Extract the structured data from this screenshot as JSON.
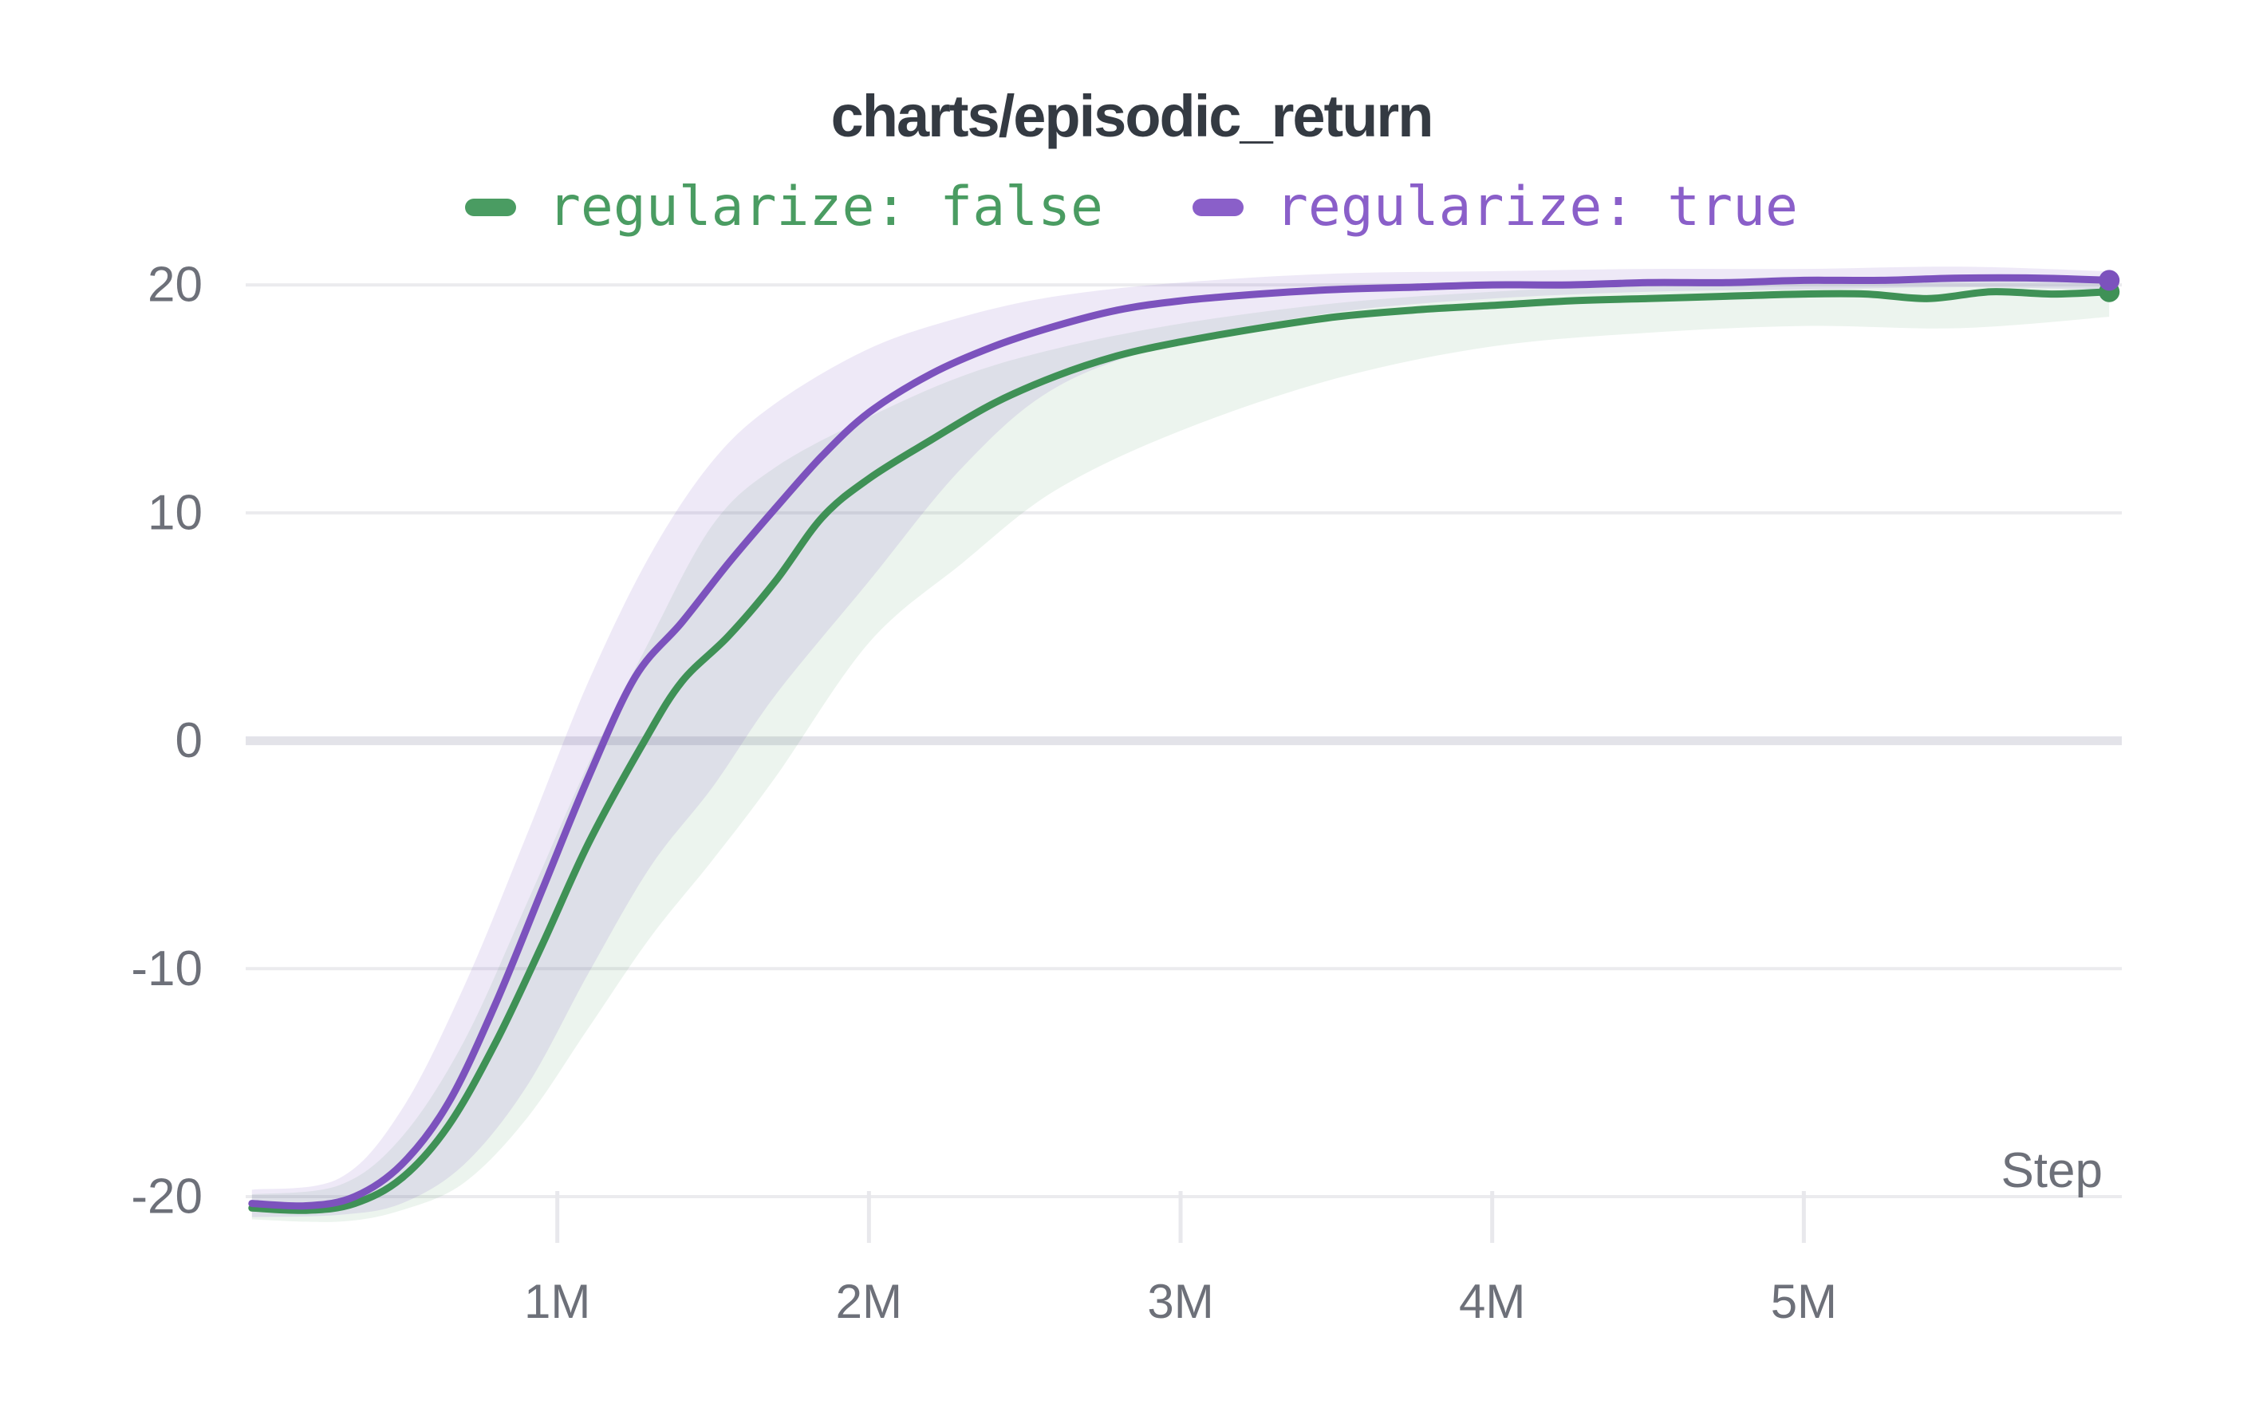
{
  "header": {
    "title": "charts/episodic_return"
  },
  "legend": {
    "items": [
      {
        "label": "regularize: false",
        "color": "#4a9c62"
      },
      {
        "label": "regularize: true",
        "color": "#8a5fc9"
      }
    ]
  },
  "colors": {
    "background": "#ffffff",
    "title_text": "#343a42",
    "axis_text": "#6d7079",
    "gridline": "#ebebee",
    "zero_gridline": "#e3e3e9",
    "tick_mark": "#e8e8ec",
    "green_line": "#3f9156",
    "purple_line": "#7c52bd"
  },
  "chart_data": {
    "type": "line",
    "title": "charts/episodic_return",
    "xlabel": "Step",
    "ylabel": "",
    "xlim": [
      0,
      6.005
    ],
    "ylim": [
      -22.1,
      21.3
    ],
    "grid": "horizontal",
    "legend_position": "top",
    "x_ticks": [
      {
        "value": 1,
        "label": "1M"
      },
      {
        "value": 2,
        "label": "2M"
      },
      {
        "value": 3,
        "label": "3M"
      },
      {
        "value": 4,
        "label": "4M"
      },
      {
        "value": 5,
        "label": "5M"
      }
    ],
    "y_ticks": [
      {
        "value": 20,
        "label": "20"
      },
      {
        "value": 10,
        "label": "10"
      },
      {
        "value": 0,
        "label": "0"
      },
      {
        "value": -10,
        "label": "-10"
      },
      {
        "value": -20,
        "label": "-20"
      }
    ],
    "x_units": "millions of steps",
    "series": [
      {
        "name": "regularize: false",
        "color": "#3f9156",
        "band_fill": "rgba(68,150,91,0.10)",
        "end_dot": true,
        "x": [
          0.02,
          0.2,
          0.35,
          0.5,
          0.65,
          0.8,
          0.95,
          1.1,
          1.28,
          1.4,
          1.55,
          1.7,
          1.85,
          2.0,
          2.2,
          2.4,
          2.6,
          2.8,
          3.0,
          3.25,
          3.5,
          3.75,
          4.0,
          4.25,
          4.5,
          4.75,
          5.0,
          5.2,
          5.4,
          5.6,
          5.8,
          5.98
        ],
        "y": [
          -20.5,
          -20.6,
          -20.3,
          -19.2,
          -16.9,
          -13.3,
          -9.0,
          -4.5,
          0.0,
          2.6,
          4.6,
          7.0,
          9.8,
          11.5,
          13.2,
          14.8,
          16.0,
          16.9,
          17.5,
          18.1,
          18.6,
          18.9,
          19.1,
          19.3,
          19.4,
          19.5,
          19.6,
          19.6,
          19.4,
          19.7,
          19.6,
          19.7
        ],
        "band_x": [
          0.02,
          0.3,
          0.5,
          0.7,
          0.9,
          1.1,
          1.3,
          1.5,
          1.7,
          2.0,
          2.3,
          2.6,
          3.0,
          3.5,
          4.0,
          4.5,
          5.0,
          5.5,
          5.98
        ],
        "band_upper": [
          -19.9,
          -19.5,
          -17.4,
          -13.2,
          -7.2,
          -1.0,
          4.5,
          9.5,
          12.0,
          14.2,
          16.0,
          17.2,
          18.3,
          19.2,
          19.7,
          20.0,
          20.1,
          20.2,
          20.2
        ],
        "band_lower": [
          -21.0,
          -21.1,
          -20.6,
          -19.4,
          -16.6,
          -12.6,
          -8.6,
          -5.2,
          -1.6,
          4.3,
          7.8,
          11.0,
          13.6,
          15.9,
          17.3,
          17.9,
          18.2,
          18.1,
          18.6
        ]
      },
      {
        "name": "regularize: true",
        "color": "#7c52bd",
        "band_fill": "rgba(125,85,192,0.13)",
        "end_dot": true,
        "x": [
          0.02,
          0.2,
          0.35,
          0.5,
          0.65,
          0.8,
          0.95,
          1.1,
          1.25,
          1.4,
          1.55,
          1.7,
          1.85,
          2.0,
          2.2,
          2.4,
          2.6,
          2.8,
          3.0,
          3.25,
          3.5,
          3.75,
          4.0,
          4.25,
          4.5,
          4.75,
          5.0,
          5.25,
          5.5,
          5.75,
          5.98
        ],
        "y": [
          -20.3,
          -20.4,
          -20.0,
          -18.6,
          -15.9,
          -11.6,
          -6.6,
          -1.6,
          2.8,
          5.2,
          7.8,
          10.2,
          12.5,
          14.4,
          16.1,
          17.3,
          18.2,
          18.9,
          19.3,
          19.6,
          19.8,
          19.9,
          20.0,
          20.0,
          20.1,
          20.1,
          20.2,
          20.2,
          20.3,
          20.3,
          20.2
        ],
        "band_x": [
          0.02,
          0.3,
          0.5,
          0.7,
          0.9,
          1.1,
          1.3,
          1.5,
          1.7,
          2.0,
          2.3,
          2.6,
          3.0,
          3.5,
          4.0,
          4.5,
          5.0,
          5.5,
          5.98
        ],
        "band_upper": [
          -19.7,
          -19.2,
          -16.2,
          -10.8,
          -4.2,
          2.6,
          8.2,
          12.3,
          14.8,
          17.2,
          18.6,
          19.5,
          20.1,
          20.5,
          20.6,
          20.7,
          20.7,
          20.8,
          20.6
        ],
        "band_lower": [
          -20.9,
          -20.8,
          -20.3,
          -18.6,
          -15.2,
          -10.2,
          -5.5,
          -2.0,
          2.0,
          7.0,
          12.0,
          15.5,
          17.5,
          18.8,
          19.4,
          19.7,
          19.8,
          19.9,
          19.8
        ]
      }
    ]
  }
}
